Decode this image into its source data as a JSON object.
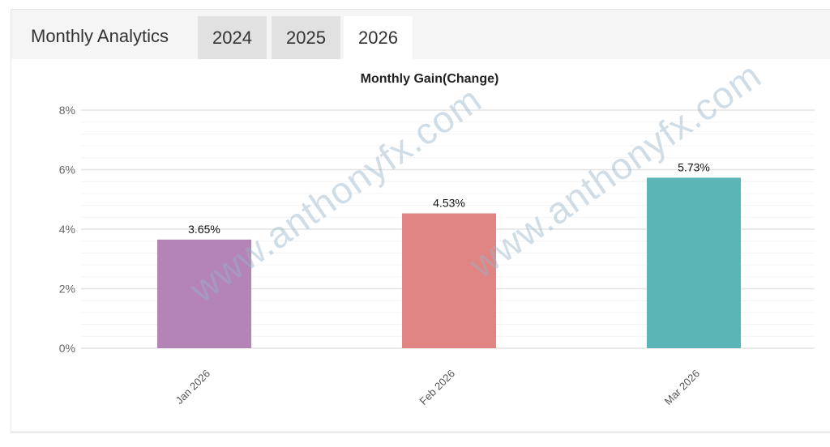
{
  "header": {
    "title": "Monthly Analytics",
    "tabs": [
      {
        "label": "2024",
        "active": false
      },
      {
        "label": "2025",
        "active": false
      },
      {
        "label": "2026",
        "active": true
      }
    ]
  },
  "watermark": "www.anthonyfx.com",
  "chart_data": {
    "type": "bar",
    "title": "Monthly Gain(Change)",
    "categories": [
      "Jan 2026",
      "Feb 2026",
      "Mar 2026"
    ],
    "values": [
      3.65,
      4.53,
      5.73
    ],
    "data_labels": [
      "3.65%",
      "4.53%",
      "5.73%"
    ],
    "colors": [
      "#b384b5",
      "#e08583",
      "#5bb4b5"
    ],
    "ylim": [
      0,
      8
    ],
    "yticks": [
      0,
      2,
      4,
      6,
      8
    ],
    "ytick_labels": [
      "0%",
      "2%",
      "4%",
      "6%",
      "8%"
    ],
    "grid": true,
    "xlabel": "",
    "ylabel": ""
  }
}
